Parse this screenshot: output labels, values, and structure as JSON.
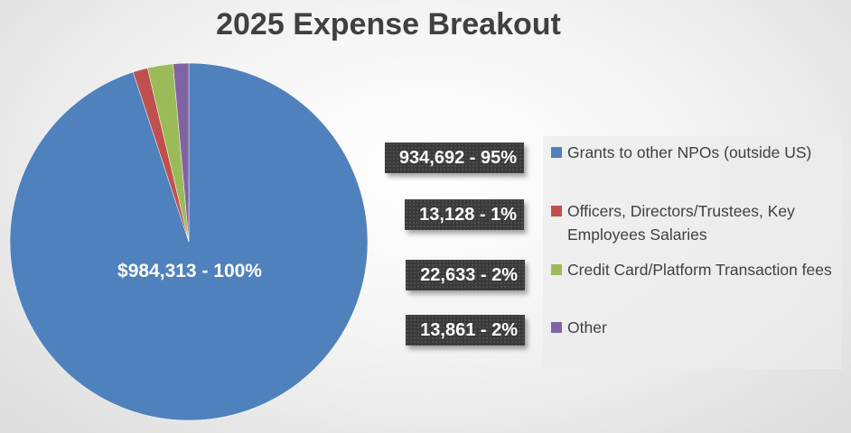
{
  "chart_data": {
    "type": "pie",
    "title": "2025 Expense Breakout",
    "center_label": "$984,313 - 100%",
    "slices": [
      {
        "name": "Grants to other NPOs (outside US)",
        "value": 934692,
        "percent": 95,
        "label": "934,692 - 95%",
        "color": "#4f81bd"
      },
      {
        "name": " Officers, Directors/Trustees, Key Employees Salaries",
        "value": 13128,
        "percent": 1,
        "label": "13,128 - 1%",
        "color": "#c0504d"
      },
      {
        "name": " Credit Card/Platform Transaction fees",
        "value": 22633,
        "percent": 2,
        "label": "22,633 - 2%",
        "color": "#9bbb59"
      },
      {
        "name": "Other",
        "value": 13861,
        "percent": 2,
        "label": "13,861 - 2%",
        "color": "#8064a2"
      }
    ],
    "legend_position": "right"
  }
}
